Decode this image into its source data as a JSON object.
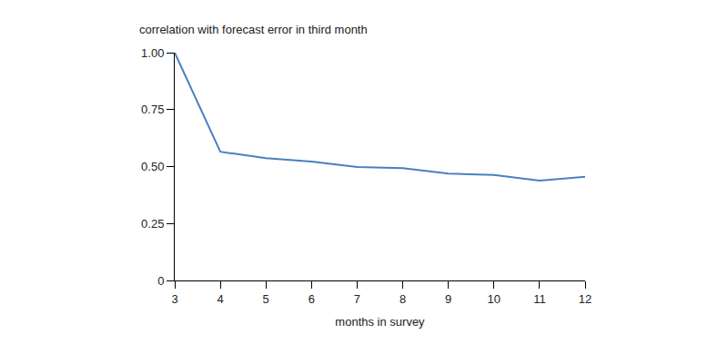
{
  "chart_data": {
    "type": "line",
    "title": "correlation with forecast error in third month",
    "x_label": "months in survey",
    "x": [
      3,
      4,
      5,
      6,
      7,
      8,
      9,
      10,
      11,
      12
    ],
    "values": [
      1.0,
      0.565,
      0.537,
      0.522,
      0.498,
      0.493,
      0.469,
      0.463,
      0.438,
      0.455
    ],
    "color": "#4a7fc1",
    "xlim": [
      3,
      12
    ],
    "xticks": [
      3,
      4,
      5,
      6,
      7,
      8,
      9,
      10,
      11,
      12
    ],
    "ylim": [
      0,
      1
    ],
    "yticks": [
      0,
      0.25,
      {
        "value": 0.5,
        "label": "0.50"
      },
      0.75,
      {
        "value": 1,
        "label": "1.00"
      }
    ],
    "grid": false
  }
}
